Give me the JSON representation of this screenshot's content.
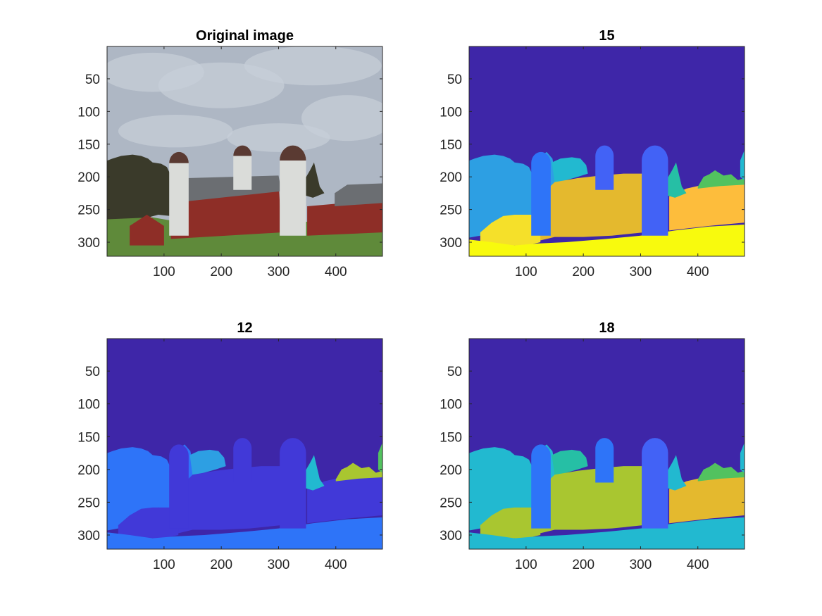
{
  "chart_data": [
    {
      "type": "image",
      "title": "Original image",
      "content": "photo",
      "xlim": [
        0.5,
        481.5
      ],
      "ylim": [
        0.5,
        321.5
      ],
      "xticks": [
        100,
        200,
        300,
        400
      ],
      "yticks": [
        50,
        100,
        150,
        200,
        250,
        300
      ],
      "y_direction": "reverse"
    },
    {
      "type": "heatmap",
      "title": "15",
      "content": "segmentation",
      "colormap": "parula",
      "xlim": [
        0.5,
        481.5
      ],
      "ylim": [
        0.5,
        321.5
      ],
      "xticks": [
        100,
        200,
        300,
        400
      ],
      "yticks": [
        50,
        100,
        150,
        200,
        250,
        300
      ],
      "y_direction": "reverse"
    },
    {
      "type": "heatmap",
      "title": "12",
      "content": "segmentation",
      "colormap": "parula",
      "xlim": [
        0.5,
        481.5
      ],
      "ylim": [
        0.5,
        321.5
      ],
      "xticks": [
        100,
        200,
        300,
        400
      ],
      "yticks": [
        50,
        100,
        150,
        200,
        250,
        300
      ],
      "y_direction": "reverse"
    },
    {
      "type": "heatmap",
      "title": "18",
      "content": "segmentation",
      "colormap": "parula",
      "xlim": [
        0.5,
        481.5
      ],
      "ylim": [
        0.5,
        321.5
      ],
      "xticks": [
        100,
        200,
        300,
        400
      ],
      "yticks": [
        50,
        100,
        150,
        200,
        250,
        300
      ],
      "y_direction": "reverse"
    }
  ],
  "colors": {
    "sky": "#3e26a8",
    "tree_blue": "#2d9fe3",
    "mid_blue": "#2e74f8",
    "silo_blue": "#4262f6",
    "violet": "#4139d8",
    "cyan": "#22b9d0",
    "teal": "#26bfa5",
    "green": "#52c25f",
    "olive": "#a9c630",
    "gold": "#e4b92e",
    "orange": "#fdbd3c",
    "yellow_light": "#f5e02a",
    "yellow": "#f8fa0d",
    "photo_sky": "#aeb7c4",
    "barn_red": "#8e2e27",
    "grass": "#5f8a3a",
    "silo_white": "#dadcd9",
    "roof_gray": "#6b6e72",
    "tree_dark": "#3a3a2a"
  }
}
